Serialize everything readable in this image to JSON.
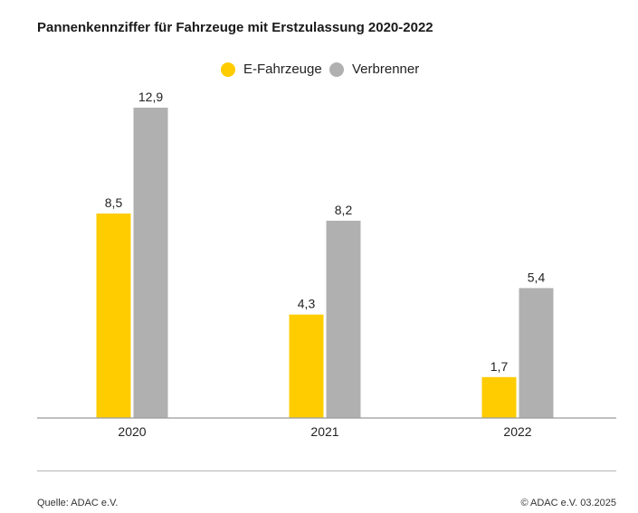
{
  "chart_data": {
    "type": "bar",
    "title": "Pannenkennziffer für Fahrzeuge mit Erstzulassung 2020-2022",
    "categories": [
      "2020",
      "2021",
      "2022"
    ],
    "series": [
      {
        "name": "E-Fahrzeuge",
        "values": [
          8.5,
          4.3,
          1.7
        ],
        "labels": [
          "8,5",
          "4,3",
          "1,7"
        ],
        "color": "#ffcc00"
      },
      {
        "name": "Verbrenner",
        "values": [
          12.9,
          8.2,
          5.4
        ],
        "labels": [
          "12,9",
          "8,2",
          "5,4"
        ],
        "color": "#b0b0b0"
      }
    ],
    "ylim": [
      0,
      12.9
    ],
    "grid": false,
    "legend_position": "top-center"
  },
  "footer": {
    "source": "Quelle: ADAC e.V.",
    "copyright": "© ADAC e.V. 03.2025"
  }
}
